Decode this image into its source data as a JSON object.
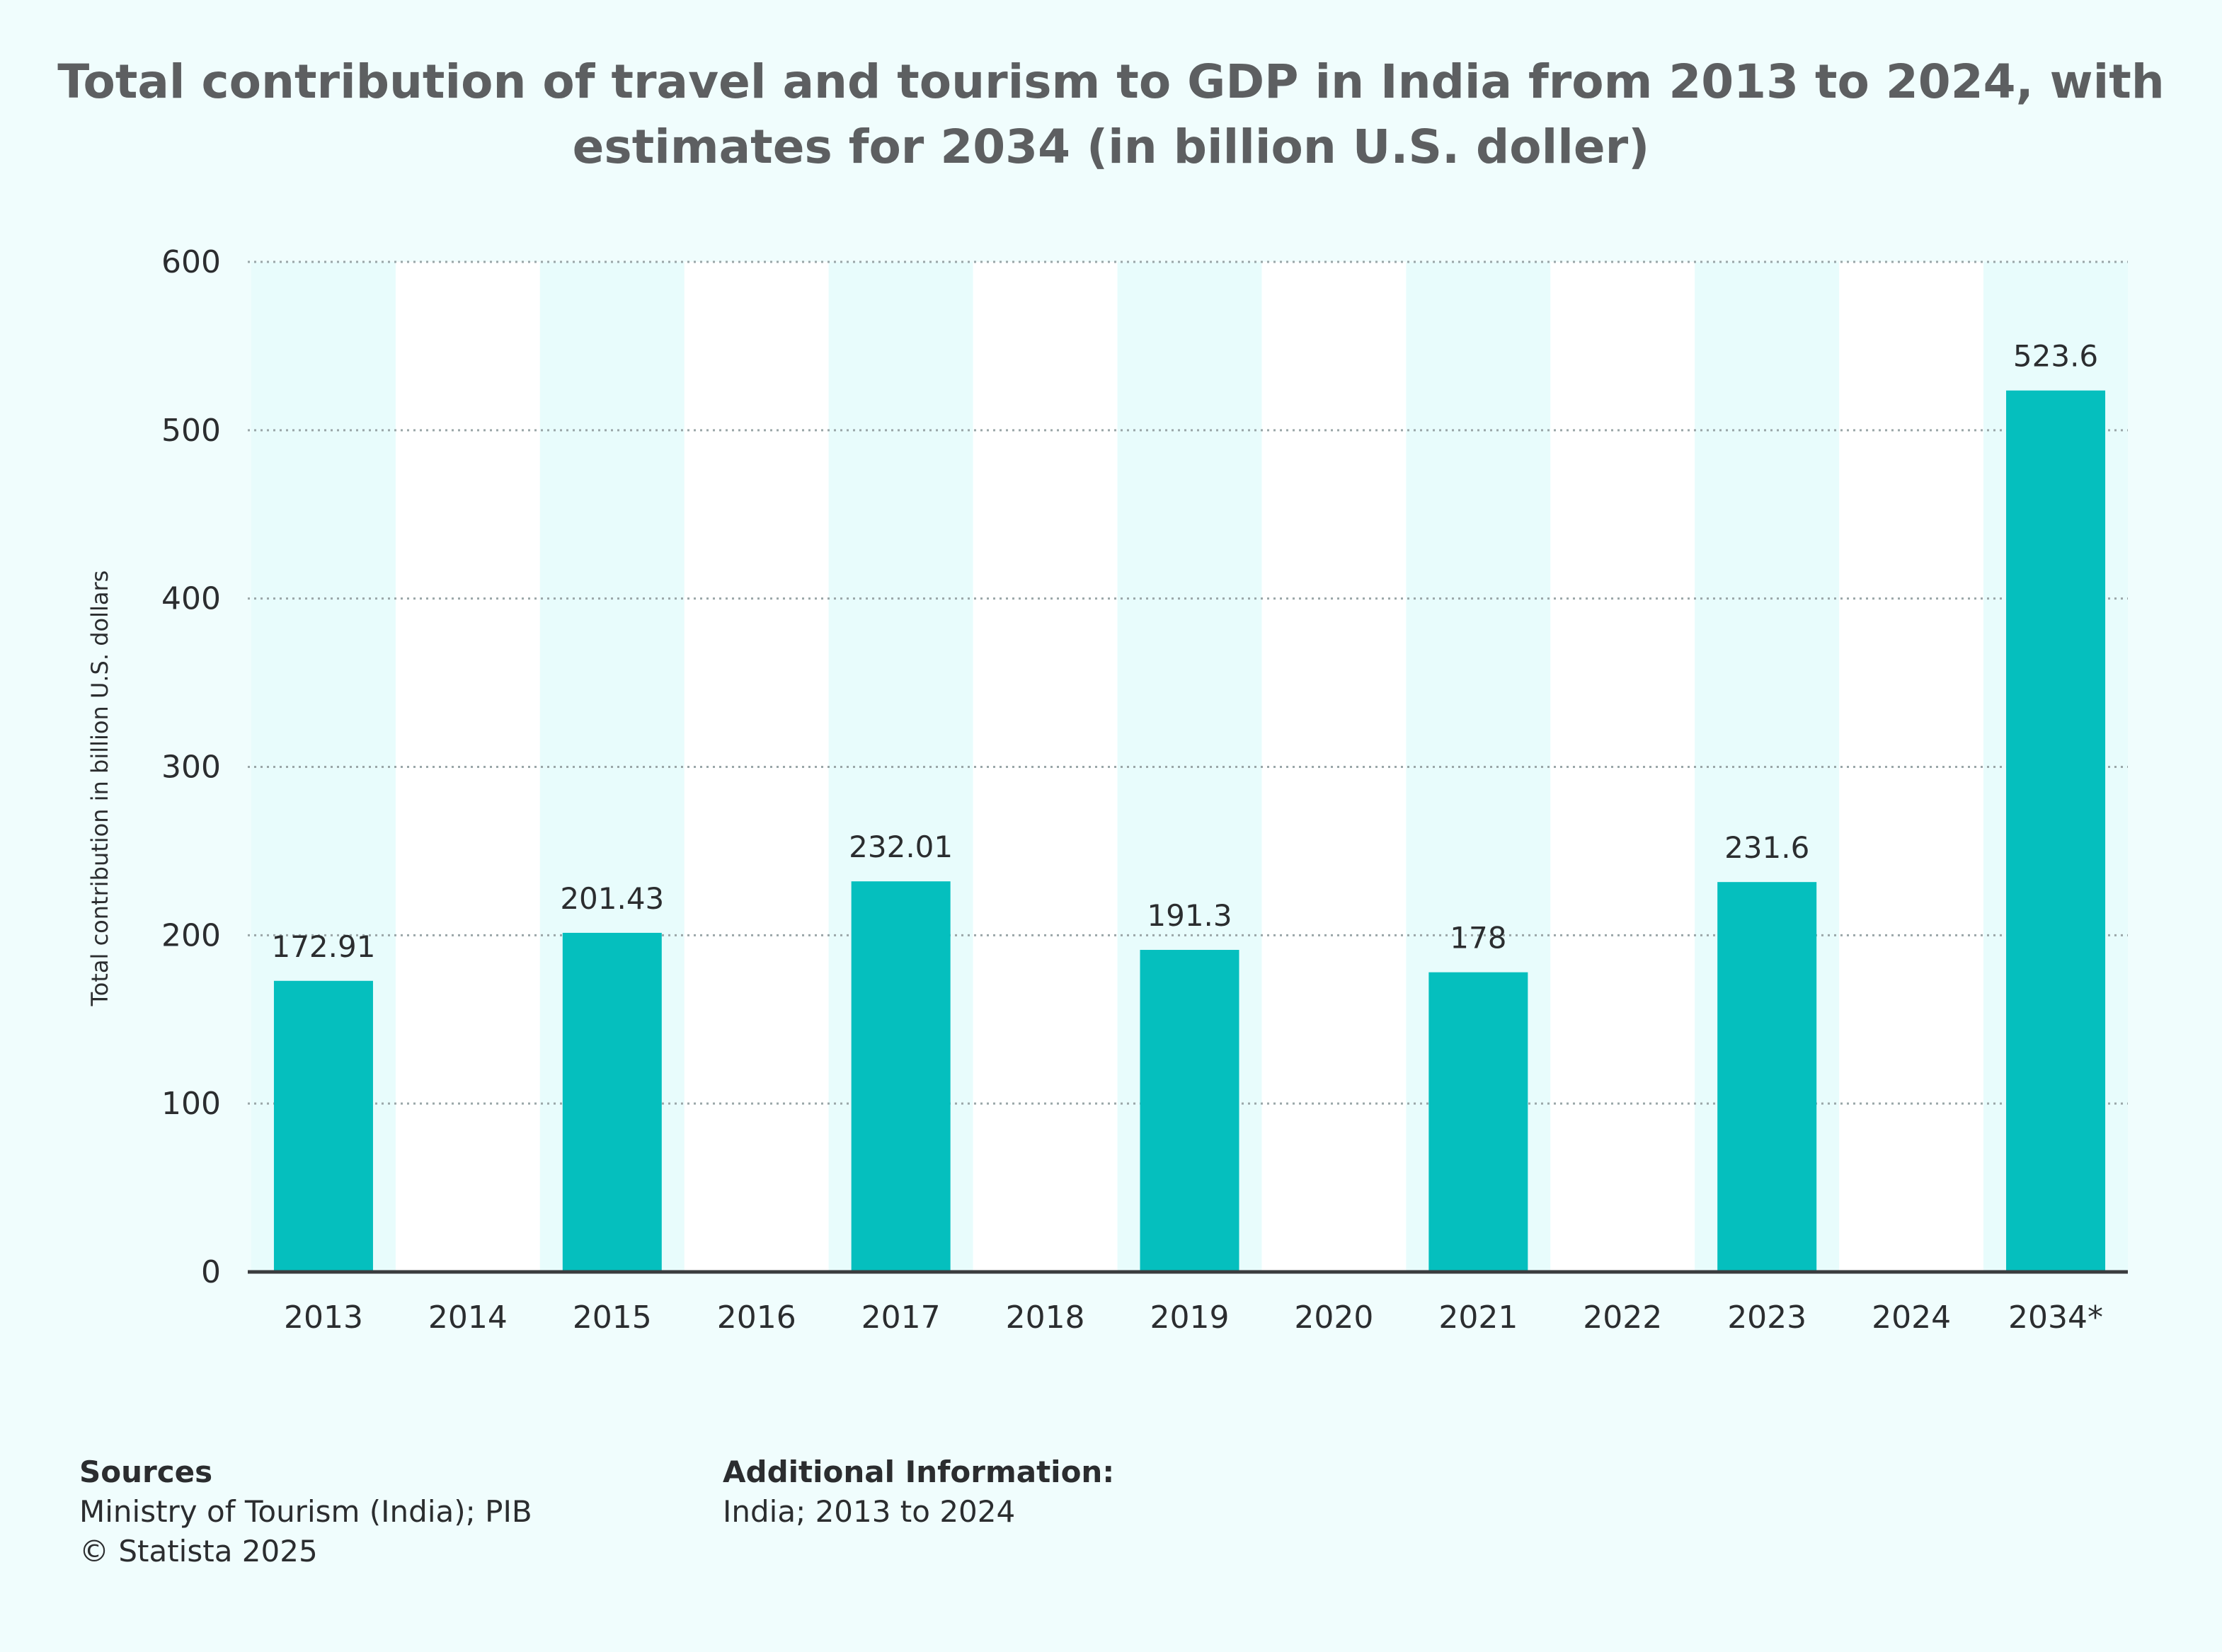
{
  "chart_data": {
    "type": "bar",
    "title": "Total contribution of travel and tourism to GDP in India from 2013 to 2024, with estimates for 2034 (in billion U.S. doller)",
    "ylabel": "Total contribution in billion U.S. dollars",
    "xlabel": "",
    "categories": [
      "2013",
      "2014",
      "2015",
      "2016",
      "2017",
      "2018",
      "2019",
      "2020",
      "2021",
      "2022",
      "2023",
      "2024",
      "2034*"
    ],
    "values": [
      172.91,
      null,
      201.43,
      null,
      232.01,
      null,
      191.3,
      null,
      178,
      null,
      231.6,
      null,
      523.6
    ],
    "value_labels": [
      "172.91",
      "",
      "201.43",
      "",
      "232.01",
      "",
      "191.3",
      "",
      "178",
      "",
      "231.6",
      "",
      "523.6"
    ],
    "ylim": [
      0,
      600
    ],
    "yticks": [
      "0",
      "100",
      "200",
      "300",
      "400",
      "500",
      "600"
    ],
    "grid": true,
    "bar_color": "#05bfbe",
    "band_color": "#e8fcfc"
  },
  "footer": {
    "sources_heading": "Sources",
    "sources_line1": "Ministry of Tourism (India); PIB",
    "sources_line2": "© Statista 2025",
    "additional_heading": "Additional Information:",
    "additional_line1": "India; 2013 to 2024"
  }
}
